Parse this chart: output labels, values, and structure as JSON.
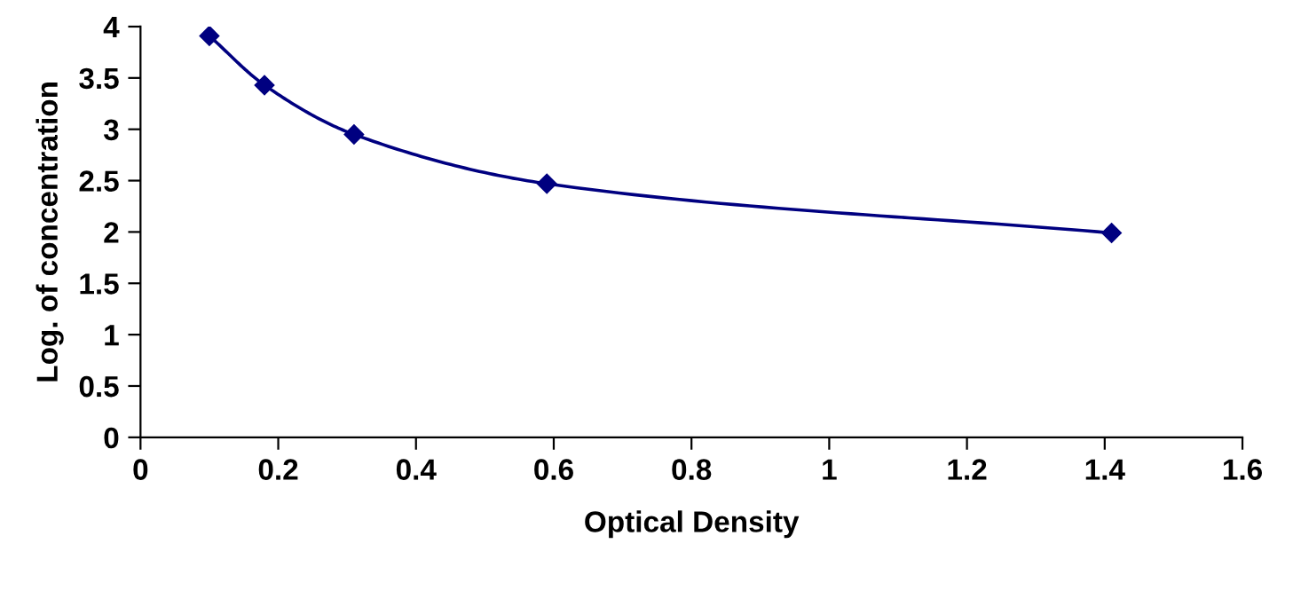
{
  "chart_data": {
    "type": "line",
    "xlabel": "Optical Density",
    "ylabel": "Log. of concentration",
    "x": [
      0.1,
      0.18,
      0.31,
      0.59,
      1.41
    ],
    "series": [
      {
        "color": "#000080",
        "values": [
          3.91,
          3.43,
          2.95,
          2.47,
          1.99
        ]
      }
    ],
    "xlim": [
      0,
      1.6
    ],
    "xticks": [
      0,
      0.2,
      0.4,
      0.6,
      0.8,
      1,
      1.2,
      1.4,
      1.6
    ],
    "ylim": [
      0,
      4
    ],
    "yticks": [
      0,
      0.5,
      1,
      1.5,
      2,
      2.5,
      3,
      3.5,
      4
    ],
    "marker": "diamond",
    "line_style": "solid",
    "grid": false,
    "legend": false
  }
}
